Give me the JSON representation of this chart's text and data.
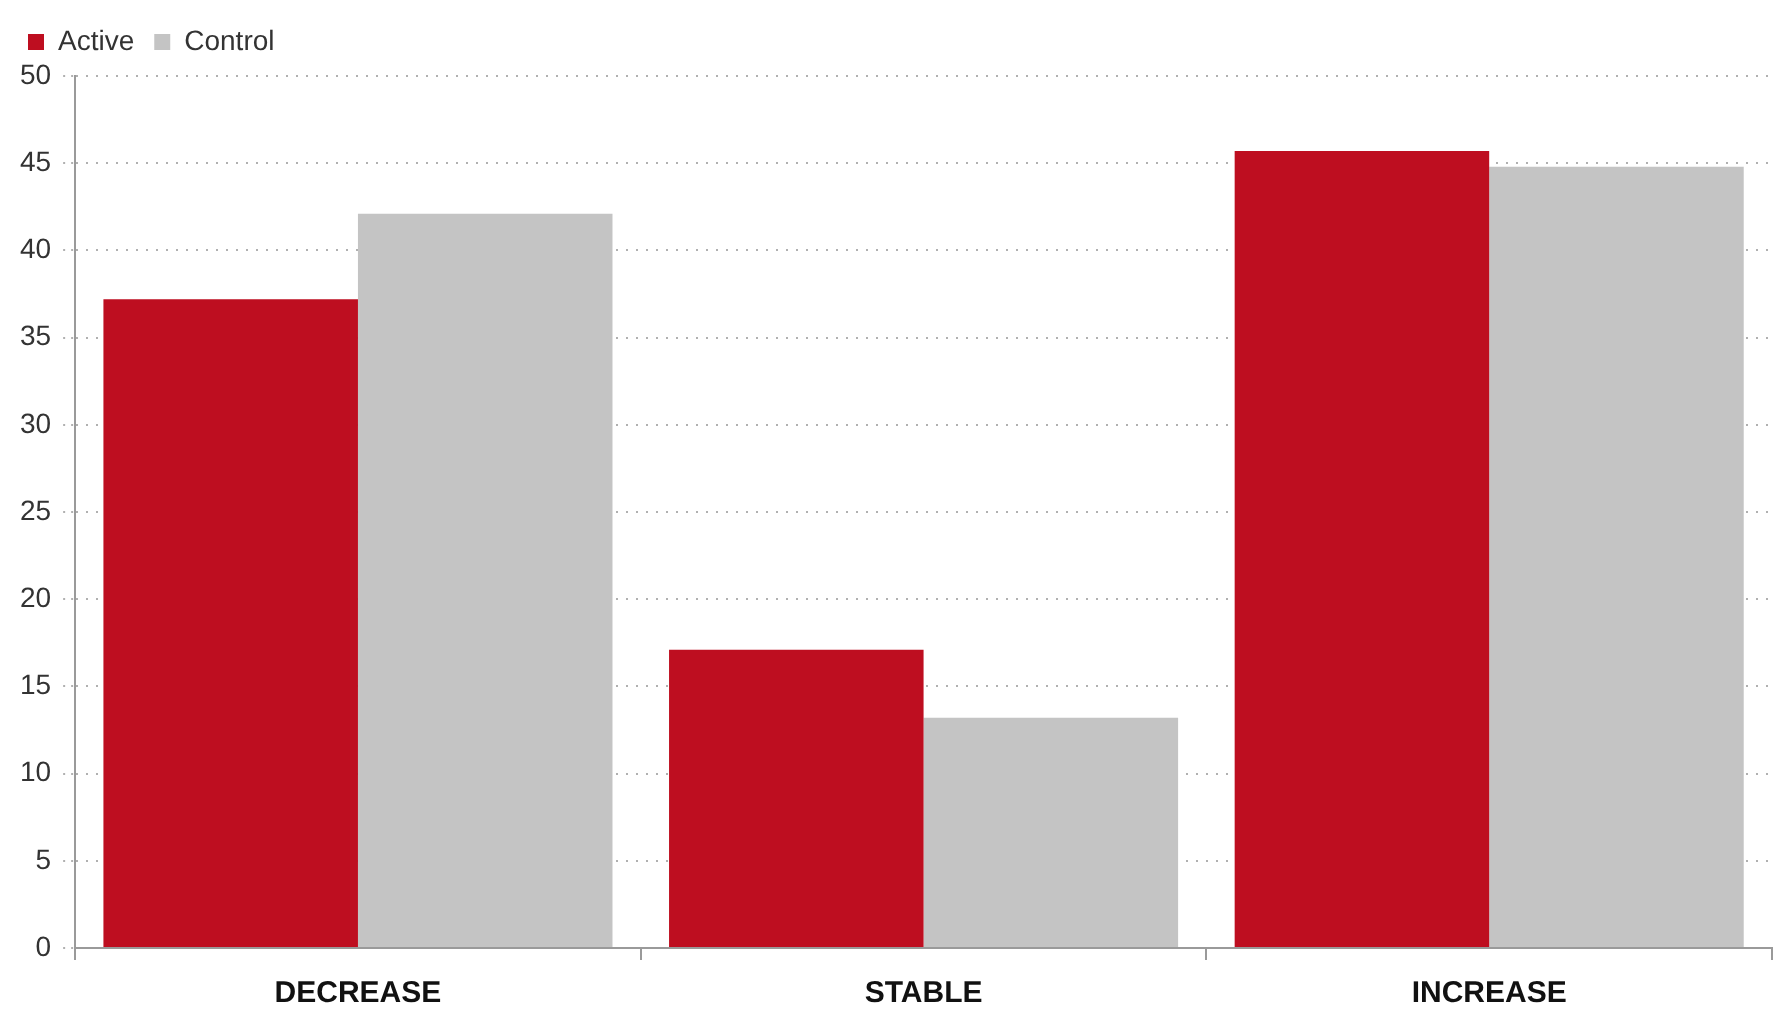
{
  "chart_data": {
    "type": "bar",
    "categories": [
      "DECREASE",
      "STABLE",
      "INCREASE"
    ],
    "series": [
      {
        "name": "Active",
        "color": "#be0e20",
        "values": [
          37.2,
          17.1,
          45.7
        ]
      },
      {
        "name": "Control",
        "color": "#c4c4c4",
        "values": [
          42.1,
          13.2,
          44.8
        ]
      }
    ],
    "ylim": [
      0,
      50
    ],
    "yticks": [
      0,
      5,
      10,
      15,
      20,
      25,
      30,
      35,
      40,
      45,
      50
    ],
    "grid": "y",
    "legend": "top left"
  }
}
